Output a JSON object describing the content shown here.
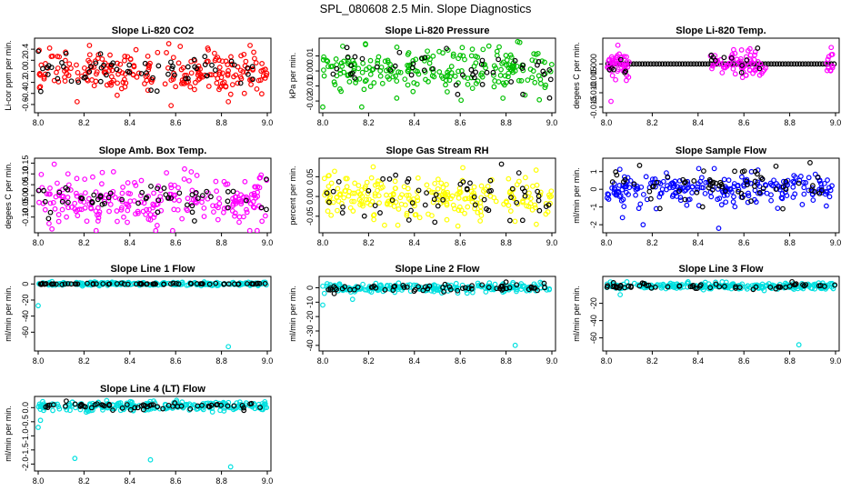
{
  "figure": {
    "title": "SPL_080608  2.5 Min. Slope Diagnostics"
  },
  "chart_data": [
    {
      "type": "scatter",
      "title": "Slope Li-820 CO2",
      "xlabel": "",
      "ylabel": "Li-cor ppm per min.",
      "xlim": [
        8.0,
        9.0
      ],
      "ylim": [
        -0.7,
        0.55
      ],
      "xticks": [
        "8.0",
        "8.2",
        "8.4",
        "8.6",
        "8.8",
        "9.0"
      ],
      "yticks": [
        "-0.6",
        "-0.4",
        "-0.2",
        "0.0",
        "0.2",
        "0.4"
      ],
      "series": [
        {
          "name": "all",
          "color": "#ff0000",
          "center": 0.0,
          "spread": 0.18,
          "count": 230,
          "points": [
            [
              8.05,
              0.42
            ],
            [
              8.57,
              0.5
            ],
            [
              8.62,
              0.45
            ],
            [
              8.58,
              -0.62
            ],
            [
              8.17,
              -0.55
            ],
            [
              8.83,
              -0.55
            ],
            [
              8.74,
              0.42
            ]
          ]
        },
        {
          "name": "selected",
          "color": "#000000",
          "center": 0.0,
          "spread": 0.14,
          "count": 60,
          "points": []
        }
      ]
    },
    {
      "type": "scatter",
      "title": "Slope Li-820 Pressure",
      "xlabel": "",
      "ylabel": "kPa per min.",
      "xlim": [
        8.0,
        9.0
      ],
      "ylim": [
        -0.026,
        0.02
      ],
      "xticks": [
        "8.0",
        "8.2",
        "8.4",
        "8.6",
        "8.8",
        "9.0"
      ],
      "yticks": [
        "-0.02",
        "-0.01",
        "0.00",
        "0.01"
      ],
      "series": [
        {
          "name": "all",
          "color": "#00c000",
          "center": 0.0,
          "spread": 0.0075,
          "count": 230,
          "points": [
            [
              8.86,
              0.019
            ],
            [
              8.77,
              0.016
            ],
            [
              8.0,
              -0.024
            ],
            [
              8.17,
              -0.024
            ]
          ]
        },
        {
          "name": "selected",
          "color": "#000000",
          "center": 0.0,
          "spread": 0.006,
          "count": 45,
          "points": [
            [
              8.54,
              0.015
            ],
            [
              8.99,
              -0.018
            ]
          ]
        }
      ]
    },
    {
      "type": "scatter",
      "title": "Slope Li-820 Temp.",
      "xlabel": "",
      "ylabel": "degees C per min.",
      "xlim": [
        8.0,
        9.0
      ],
      "ylim": [
        -0.016,
        0.008
      ],
      "xticks": [
        "8.0",
        "8.2",
        "8.4",
        "8.6",
        "8.8",
        "9.0"
      ],
      "yticks": [
        "-0.015",
        "-0.010",
        "-0.005",
        "0.000"
      ],
      "series": [
        {
          "name": "line",
          "color": "#000000",
          "center": 0.0,
          "spread": 0.0,
          "count": 80,
          "points": []
        },
        {
          "name": "all",
          "color": "#ff00ff",
          "center": 0.0,
          "spread": 0.0022,
          "count": 130,
          "points": [
            [
              8.05,
              0.0065
            ],
            [
              8.02,
              -0.013
            ],
            [
              8.04,
              -0.0055
            ],
            [
              8.61,
              -0.004
            ]
          ]
        },
        {
          "name": "selected",
          "color": "#000000",
          "center": 0.0,
          "spread": 0.0018,
          "count": 14,
          "points": [
            [
              8.66,
              0.0055
            ],
            [
              8.08,
              -0.003
            ],
            [
              8.59,
              -0.003
            ]
          ]
        }
      ]
    },
    {
      "type": "scatter",
      "title": "Slope Amb. Box Temp.",
      "xlabel": "",
      "ylabel": "degees C per min.",
      "xlim": [
        8.0,
        9.0
      ],
      "ylim": [
        -0.16,
        0.16
      ],
      "xticks": [
        "8.0",
        "8.2",
        "8.4",
        "8.6",
        "8.8",
        "9.0"
      ],
      "yticks": [
        "-0.10",
        "-0.05",
        "0.00",
        "0.05",
        "0.10",
        "0.15"
      ],
      "series": [
        {
          "name": "all",
          "color": "#ff00ff",
          "center": -0.02,
          "spread": 0.055,
          "count": 240,
          "points": [
            [
              8.07,
              0.145
            ],
            [
              8.06,
              -0.155
            ],
            [
              8.56,
              0.105
            ],
            [
              8.13,
              0.1
            ]
          ]
        },
        {
          "name": "selected",
          "color": "#000000",
          "center": -0.02,
          "spread": 0.04,
          "count": 55,
          "points": []
        }
      ]
    },
    {
      "type": "scatter",
      "title": "Slope Gas Stream RH",
      "xlabel": "",
      "ylabel": "percent per min.",
      "xlim": [
        8.0,
        9.0
      ],
      "ylim": [
        -0.085,
        0.09
      ],
      "xticks": [
        "8.0",
        "8.2",
        "8.4",
        "8.6",
        "8.8",
        "9.0"
      ],
      "yticks": [
        "-0.05",
        "0.00",
        "0.05"
      ],
      "series": [
        {
          "name": "all",
          "color": "#ffff00",
          "center": 0.0,
          "spread": 0.028,
          "count": 240,
          "points": [
            [
              8.22,
              0.075
            ],
            [
              8.59,
              -0.075
            ]
          ]
        },
        {
          "name": "selected",
          "color": "#000000",
          "center": 0.0,
          "spread": 0.03,
          "count": 55,
          "points": [
            [
              8.78,
              0.082
            ]
          ]
        }
      ]
    },
    {
      "type": "scatter",
      "title": "Slope Sample Flow",
      "xlabel": "",
      "ylabel": "ml/min per min.",
      "xlim": [
        8.0,
        9.0
      ],
      "ylim": [
        -2.3,
        1.6
      ],
      "xticks": [
        "8.0",
        "8.2",
        "8.4",
        "8.6",
        "8.8",
        "9.0"
      ],
      "yticks": [
        "-2",
        "-1",
        "0",
        "1"
      ],
      "series": [
        {
          "name": "all",
          "color": "#0000ff",
          "center": 0.0,
          "spread": 0.45,
          "count": 240,
          "points": [
            [
              8.16,
              -2.0
            ],
            [
              8.49,
              -2.2
            ],
            [
              8.07,
              -1.6
            ]
          ]
        },
        {
          "name": "selected",
          "color": "#000000",
          "center": 0.2,
          "spread": 0.5,
          "count": 65,
          "points": [
            [
              8.74,
              1.3
            ],
            [
              8.65,
              1.0
            ]
          ]
        }
      ]
    },
    {
      "type": "scatter",
      "title": "Slope Line 1 Flow",
      "xlabel": "",
      "ylabel": "ml/min per min.",
      "xlim": [
        8.0,
        9.0
      ],
      "ylim": [
        -80,
        6
      ],
      "xticks": [
        "8.0",
        "8.2",
        "8.4",
        "8.6",
        "8.8",
        "9.0"
      ],
      "yticks": [
        "-60",
        "-40",
        "-20",
        "0"
      ],
      "series": [
        {
          "name": "all",
          "color": "#00e0e0",
          "center": 0.0,
          "spread": 1.0,
          "count": 240,
          "points": [
            [
              8.83,
              -78
            ],
            [
              8.0,
              -27
            ],
            [
              8.06,
              3
            ]
          ]
        },
        {
          "name": "selected",
          "color": "#000000",
          "center": 0.0,
          "spread": 0.4,
          "count": 70,
          "points": []
        }
      ]
    },
    {
      "type": "scatter",
      "title": "Slope Line 2 Flow",
      "xlabel": "",
      "ylabel": "ml/min per min.",
      "xlim": [
        8.0,
        9.0
      ],
      "ylim": [
        -42,
        6
      ],
      "xticks": [
        "8.0",
        "8.2",
        "8.4",
        "8.6",
        "8.8",
        "9.0"
      ],
      "yticks": [
        "-40",
        "-30",
        "-20",
        "-10",
        "0"
      ],
      "series": [
        {
          "name": "all",
          "color": "#00e0e0",
          "center": 0.0,
          "spread": 1.5,
          "count": 240,
          "points": [
            [
              8.84,
              -40
            ],
            [
              8.0,
              -12
            ],
            [
              8.13,
              -8
            ]
          ]
        },
        {
          "name": "selected",
          "color": "#000000",
          "center": 0.0,
          "spread": 1.2,
          "count": 60,
          "points": [
            [
              8.8,
              4
            ],
            [
              8.05,
              -4
            ]
          ]
        }
      ]
    },
    {
      "type": "scatter",
      "title": "Slope Line 3 Flow",
      "xlabel": "",
      "ylabel": "ml/min per min.",
      "xlim": [
        8.0,
        9.0
      ],
      "ylim": [
        -72,
        8
      ],
      "xticks": [
        "8.0",
        "8.2",
        "8.4",
        "8.6",
        "8.8",
        "9.0"
      ],
      "yticks": [
        "-60",
        "-40",
        "-20"
      ],
      "series": [
        {
          "name": "all",
          "color": "#00e0e0",
          "center": 0.0,
          "spread": 2.0,
          "count": 240,
          "points": [
            [
              8.84,
              -68
            ],
            [
              8.06,
              -10
            ]
          ]
        },
        {
          "name": "selected",
          "color": "#000000",
          "center": 0.0,
          "spread": 1.5,
          "count": 60,
          "points": [
            [
              8.81,
              5
            ]
          ]
        }
      ]
    },
    {
      "type": "scatter",
      "title": "Slope Line 4 (LT) Flow",
      "xlabel": "",
      "ylabel": "ml/min per min.",
      "xlim": [
        8.0,
        9.0
      ],
      "ylim": [
        -2.15,
        0.3
      ],
      "xticks": [
        "8.0",
        "8.2",
        "8.4",
        "8.6",
        "8.8",
        "9.0"
      ],
      "yticks": [
        "-2.0",
        "-1.5",
        "-1.0",
        "-0.5",
        "0.0"
      ],
      "series": [
        {
          "name": "all",
          "color": "#00e0e0",
          "center": 0.05,
          "spread": 0.08,
          "count": 240,
          "points": [
            [
              8.16,
              -1.8
            ],
            [
              8.49,
              -1.85
            ],
            [
              8.84,
              -2.1
            ],
            [
              8.0,
              -0.7
            ],
            [
              8.01,
              -0.45
            ]
          ]
        },
        {
          "name": "selected",
          "color": "#000000",
          "center": 0.05,
          "spread": 0.07,
          "count": 60,
          "points": []
        }
      ]
    }
  ]
}
